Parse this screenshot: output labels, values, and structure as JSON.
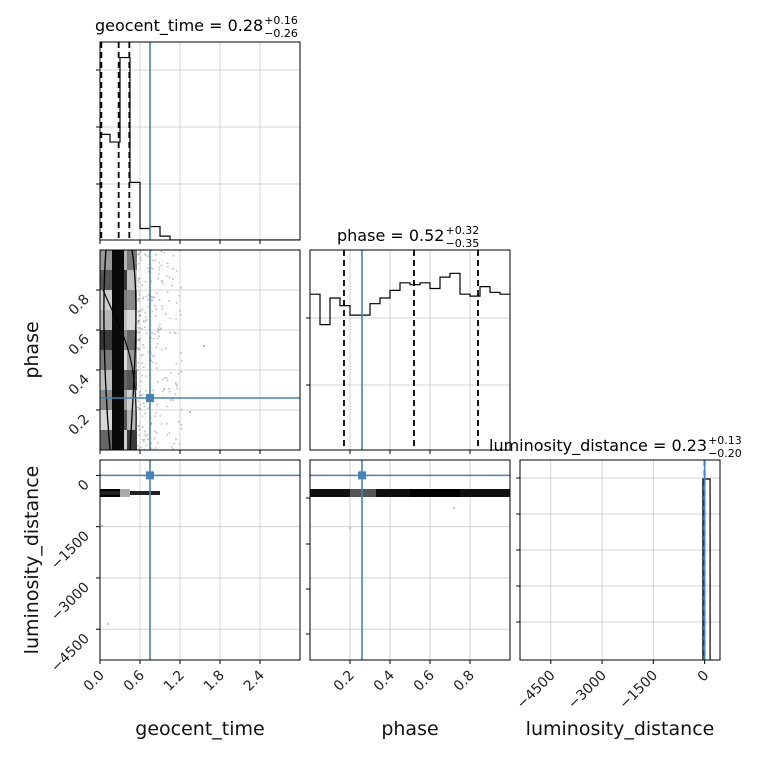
{
  "colors": {
    "truth": "#4682b4",
    "hist": "#000000",
    "grid": "#c8c8c8",
    "quantile": "#000000"
  },
  "chart_data": {
    "type": "corner",
    "parameters": [
      "geocent_time",
      "phase",
      "luminosity_distance"
    ],
    "truths": {
      "geocent_time": 0.75,
      "phase": 0.26,
      "luminosity_distance": 0
    },
    "titles": {
      "geocent_time": {
        "name": "geocent_time",
        "value": "0.28",
        "upper": "+0.16",
        "lower": "−0.26"
      },
      "phase": {
        "name": "phase",
        "value": "0.52",
        "upper": "+0.32",
        "lower": "−0.35"
      },
      "luminosity_distance": {
        "name": "luminosity_distance",
        "value": "0.23",
        "upper": "+0.13",
        "lower": "−0.20"
      }
    },
    "ranges": {
      "geocent_time": [
        0.0,
        3.0
      ],
      "phase": [
        0.0,
        1.0
      ],
      "luminosity_distance": [
        -5400,
        450
      ]
    },
    "ticks": {
      "geocent_time": [
        "0.0",
        "0.6",
        "1.2",
        "1.8",
        "2.4"
      ],
      "phase_x": [
        "0.2",
        "0.4",
        "0.6",
        "0.8"
      ],
      "phase_y": [
        "0.2",
        "0.4",
        "0.6",
        "0.8"
      ],
      "luminosity_distance_x": [
        "−4500",
        "−3000",
        "−1500",
        "0"
      ],
      "luminosity_distance_y": [
        "0",
        "−1500",
        "−3000",
        "−4500"
      ]
    },
    "tick_values": {
      "geocent_time": [
        0.0,
        0.6,
        1.2,
        1.8,
        2.4
      ],
      "phase": [
        0.2,
        0.4,
        0.6,
        0.8
      ],
      "luminosity_distance": [
        -4500,
        -3000,
        -1500,
        0
      ]
    },
    "hist_geocent_time": {
      "edges_start": 0.0,
      "bin_width": 0.15,
      "counts": [
        0.55,
        0.51,
        0.95,
        0.3,
        0.06,
        0.07,
        0.02,
        0.0,
        0.0,
        0.0,
        0.0,
        0.0,
        0.0,
        0.0,
        0.0,
        0.0,
        0.0,
        0.0,
        0.0,
        0.0
      ],
      "ymax": 1.0,
      "quantiles": [
        0.02,
        0.28,
        0.44
      ]
    },
    "hist_phase": {
      "edges_start": 0.0,
      "bin_width": 0.05,
      "counts": [
        0.82,
        0.66,
        0.8,
        0.76,
        0.71,
        0.71,
        0.77,
        0.8,
        0.84,
        0.88,
        0.87,
        0.88,
        0.85,
        0.91,
        0.93,
        0.82,
        0.81,
        0.86,
        0.83,
        0.82
      ],
      "ymax": 1.0,
      "quantiles": [
        0.17,
        0.52,
        0.84
      ]
    },
    "hist_luminosity_distance": {
      "bins": [
        [
          -50,
          50,
          0.95
        ],
        [
          50,
          160,
          0.95
        ]
      ],
      "ymax": 1.0,
      "quantiles": [
        0.23
      ]
    }
  }
}
